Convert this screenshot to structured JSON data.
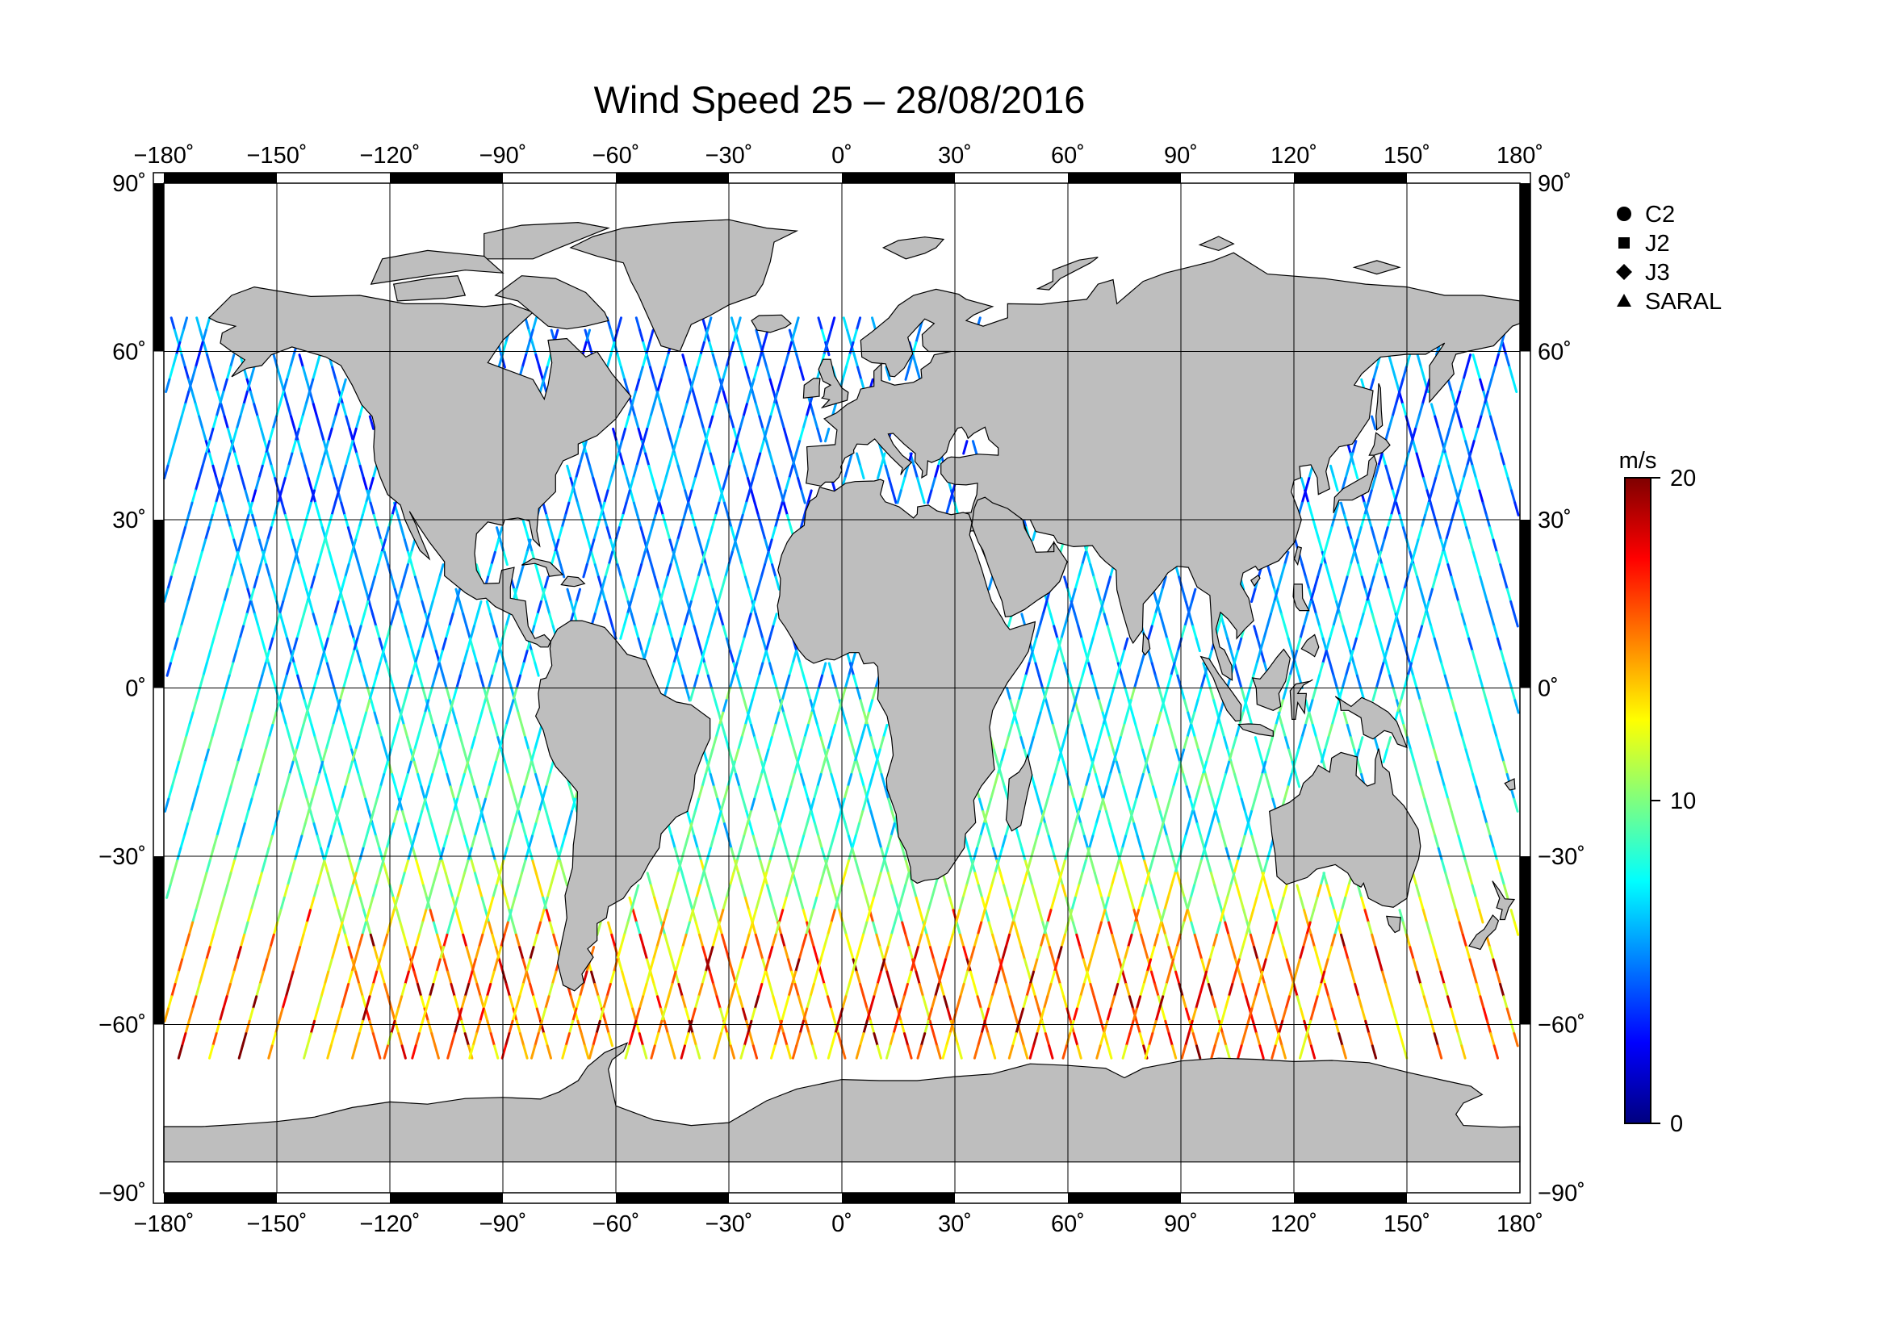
{
  "title": "Wind Speed 25 – 28/08/2016",
  "map": {
    "projection": "equirectangular",
    "lon_range": [
      -180,
      180
    ],
    "lat_range": [
      -90,
      90
    ],
    "grid_lon_step": 30,
    "grid_lat_step": 30,
    "land_color": "#bebebe",
    "ocean_color": "#ffffff",
    "lon_tick_labels": [
      "−180˚",
      "−150˚",
      "−120˚",
      "−90˚",
      "−60˚",
      "−30˚",
      "0˚",
      "30˚",
      "60˚",
      "90˚",
      "120˚",
      "150˚",
      "180˚"
    ],
    "lat_tick_labels_left": [
      "90˚",
      "60˚",
      "30˚",
      "0˚",
      "−30˚",
      "−60˚",
      "−90˚"
    ],
    "lat_tick_labels_right": [
      "90˚",
      "60˚",
      "30˚",
      "0˚",
      "−30˚",
      "−60˚",
      "−90˚"
    ],
    "frame": "alternating black/white border bands every 30 degrees"
  },
  "legend": {
    "items": [
      {
        "label": "C2",
        "symbol": "circle"
      },
      {
        "label": "J2",
        "symbol": "square"
      },
      {
        "label": "J3",
        "symbol": "diamond"
      },
      {
        "label": "SARAL",
        "symbol": "triangle"
      }
    ]
  },
  "colorbar": {
    "unit": "m/s",
    "min": 0,
    "max": 20,
    "tick_labels": [
      "20",
      "10",
      "0"
    ],
    "colormap": "jet",
    "colors": [
      "#00007f",
      "#0000ff",
      "#007fff",
      "#00ffff",
      "#7fff7f",
      "#ffff00",
      "#ff7f00",
      "#ff0000",
      "#7f0000"
    ]
  },
  "chart_data": {
    "type": "scatter",
    "description_of_data": "satellite altimeter wind speed along-track, colored by wind speed (m/s)",
    "x_axis": "longitude",
    "y_axis": "latitude",
    "xlim": [
      -180,
      180
    ],
    "ylim": [
      -90,
      90
    ],
    "value_range": [
      0,
      20
    ],
    "regional_wind_speed_typical_ms": [
      {
        "lat_band": [
          30,
          65
        ],
        "typical": 5
      },
      {
        "lat_band": [
          0,
          30
        ],
        "typical": 6
      },
      {
        "lat_band": [
          -30,
          0
        ],
        "typical": 8
      },
      {
        "lat_band": [
          -45,
          -30
        ],
        "typical": 11
      },
      {
        "lat_band": [
          -66,
          -45
        ],
        "typical": 14
      }
    ]
  }
}
